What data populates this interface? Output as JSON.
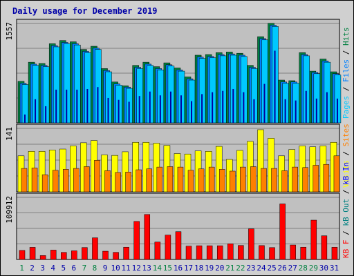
{
  "title": "Daily usage for December 2019",
  "colors": {
    "hits": "#008040",
    "files": "#0080ff",
    "pages": "#00c8ff",
    "visits": "#ffff00",
    "sites": "#ff8000",
    "kbin": "#0000ff",
    "kbout": "#008080",
    "kbf": "#ff0000",
    "weekend_day": "#008040",
    "weekday": "#0000a8"
  },
  "chart_data": [
    {
      "type": "bar",
      "panel": "top",
      "ymax_label": "1557",
      "ylim": [
        0,
        1557
      ],
      "legend": [
        "Pages",
        "Files",
        "Hits"
      ],
      "x": [
        1,
        2,
        3,
        4,
        5,
        6,
        7,
        8,
        9,
        10,
        11,
        12,
        13,
        14,
        15,
        16,
        17,
        18,
        19,
        20,
        21,
        22,
        23,
        24,
        25,
        26,
        27,
        28,
        29,
        30,
        31
      ],
      "series": [
        {
          "name": "Hits",
          "values": [
            650,
            950,
            930,
            1240,
            1290,
            1270,
            1150,
            1200,
            850,
            640,
            580,
            900,
            950,
            880,
            940,
            860,
            720,
            1060,
            1070,
            1100,
            1110,
            1090,
            900,
            1350,
            1560,
            670,
            660,
            1100,
            810,
            1000,
            800
          ]
        },
        {
          "name": "Files",
          "values": [
            620,
            920,
            900,
            1210,
            1260,
            1240,
            1120,
            1170,
            820,
            610,
            560,
            870,
            920,
            850,
            910,
            830,
            690,
            1030,
            1040,
            1070,
            1080,
            1060,
            870,
            1320,
            1530,
            640,
            640,
            1070,
            790,
            970,
            770
          ]
        },
        {
          "name": "Pages",
          "values": [
            600,
            900,
            880,
            1190,
            1240,
            1220,
            1100,
            1150,
            800,
            590,
            540,
            850,
            900,
            830,
            890,
            810,
            670,
            1010,
            1020,
            1050,
            1060,
            1040,
            850,
            1300,
            1510,
            620,
            620,
            1050,
            770,
            950,
            750
          ]
        }
      ],
      "second_level": [
        130,
        370,
        260,
        520,
        520,
        520,
        530,
        560,
        390,
        360,
        330,
        420,
        490,
        430,
        490,
        430,
        340,
        450,
        480,
        500,
        530,
        480,
        370,
        610,
        1130,
        370,
        350,
        500,
        380,
        480,
        380
      ]
    },
    {
      "type": "bar",
      "panel": "middle",
      "ymax_label": "141",
      "ylim": [
        0,
        141
      ],
      "legend": [
        "Visits",
        "Sites",
        "KBytes"
      ],
      "x": [
        1,
        2,
        3,
        4,
        5,
        6,
        7,
        8,
        9,
        10,
        11,
        12,
        13,
        14,
        15,
        16,
        17,
        18,
        19,
        20,
        21,
        22,
        23,
        24,
        25,
        26,
        27,
        28,
        29,
        30,
        31
      ],
      "series": [
        {
          "name": "Visits",
          "values": [
            80,
            90,
            90,
            93,
            95,
            102,
            109,
            114,
            82,
            81,
            89,
            110,
            110,
            108,
            103,
            85,
            84,
            91,
            90,
            101,
            72,
            92,
            112,
            138,
            119,
            80,
            94,
            102,
            100,
            102,
            110
          ]
        },
        {
          "name": "Sites",
          "values": [
            52,
            53,
            38,
            48,
            50,
            52,
            56,
            70,
            47,
            43,
            44,
            49,
            51,
            55,
            56,
            55,
            48,
            51,
            55,
            50,
            46,
            55,
            56,
            52,
            52,
            47,
            55,
            54,
            59,
            61,
            80
          ]
        }
      ]
    },
    {
      "type": "bar",
      "panel": "bottom",
      "ymax_label": "109912",
      "ylim": [
        0,
        109912
      ],
      "legend": [
        "KBytes",
        "In",
        "Out",
        "F"
      ],
      "x": [
        1,
        2,
        3,
        4,
        5,
        6,
        7,
        8,
        9,
        10,
        11,
        12,
        13,
        14,
        15,
        16,
        17,
        18,
        19,
        20,
        21,
        22,
        23,
        24,
        25,
        26,
        27,
        28,
        29,
        30,
        31
      ],
      "series": [
        {
          "name": "KBytes F",
          "values": [
            16000,
            21500,
            6900,
            16600,
            12500,
            15300,
            21100,
            38300,
            14600,
            12600,
            21700,
            67300,
            79600,
            30800,
            43200,
            49200,
            23600,
            24300,
            24300,
            24300,
            27800,
            24800,
            54200,
            24600,
            21000,
            98300,
            25600,
            21700,
            69600,
            41900,
            21600
          ]
        }
      ]
    }
  ],
  "xlabels": [
    "1",
    "2",
    "3",
    "4",
    "5",
    "6",
    "7",
    "8",
    "9",
    "10",
    "11",
    "12",
    "13",
    "14",
    "15",
    "16",
    "17",
    "18",
    "19",
    "20",
    "21",
    "22",
    "23",
    "24",
    "25",
    "26",
    "27",
    "28",
    "29",
    "30",
    "31"
  ],
  "weekend_days": [
    1,
    7,
    8,
    14,
    15,
    21,
    22,
    28,
    29
  ]
}
